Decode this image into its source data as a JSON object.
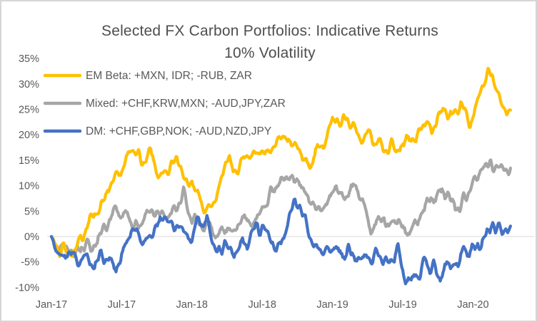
{
  "colors": {
    "background": "#FFFFFF",
    "frame_border": "#D6D6D6",
    "gridline": "#D9D9D9",
    "title_text": "#4E4E4E",
    "label_text": "#595959"
  },
  "chart_data": {
    "type": "line",
    "title": "Selected FX Carbon Portfolios: Indicative Returns 10% Volatility",
    "title_line1": "Selected FX Carbon Portfolios: Indicative Returns",
    "title_line2": "10% Volatility",
    "xlabel": "",
    "ylabel": "",
    "x_unit": "months since Jan-2017",
    "y_unit": "percent return",
    "ylim": [
      -10,
      35
    ],
    "y_tick_step": 5,
    "y_tick_labels": [
      "35%",
      "30%",
      "25%",
      "20%",
      "15%",
      "10%",
      "5%",
      "0%",
      "-5%",
      "-10%"
    ],
    "x_tick_labels": [
      "Jan-17",
      "Jul-17",
      "Jan-18",
      "Jul-18",
      "Jan-19",
      "Jul-19",
      "Jan-20"
    ],
    "x_tick_months": [
      0,
      6,
      12,
      18,
      24,
      30,
      36
    ],
    "gridlines": "horizontal line at 0% only",
    "legend_position": "top-left overlay",
    "series": [
      {
        "name": "EM Beta",
        "label": "EM Beta: +MXN, IDR; -RUB, ZAR",
        "color": "#FFC000",
        "points": [
          [
            0,
            0
          ],
          [
            0.3,
            -1.5
          ],
          [
            0.6,
            -3.3
          ],
          [
            1,
            -1.6
          ],
          [
            1.5,
            -3.3
          ],
          [
            2,
            -2.3
          ],
          [
            2.4,
            -1.2
          ],
          [
            2.8,
            1
          ],
          [
            3.2,
            3.5
          ],
          [
            3.6,
            4.2
          ],
          [
            4,
            5
          ],
          [
            4.4,
            6.5
          ],
          [
            4.8,
            9
          ],
          [
            5.2,
            10.8
          ],
          [
            5.6,
            12.8
          ],
          [
            6,
            12.6
          ],
          [
            6.4,
            15
          ],
          [
            6.8,
            16.8
          ],
          [
            7,
            17.3
          ],
          [
            7.3,
            16.4
          ],
          [
            7.6,
            15
          ],
          [
            7.9,
            14.3
          ],
          [
            8.2,
            16.3
          ],
          [
            8.4,
            17.1
          ],
          [
            8.7,
            14.8
          ],
          [
            9,
            13
          ],
          [
            9.3,
            11.8
          ],
          [
            9.6,
            12.4
          ],
          [
            10,
            13.5
          ],
          [
            10.4,
            14.2
          ],
          [
            10.7,
            15.8
          ],
          [
            11,
            13.5
          ],
          [
            11.4,
            10.5
          ],
          [
            11.7,
            9.5
          ],
          [
            12,
            10.8
          ],
          [
            12.4,
            9.5
          ],
          [
            13,
            5.2
          ],
          [
            13.4,
            6.5
          ],
          [
            13.8,
            5.8
          ],
          [
            14.2,
            9
          ],
          [
            14.6,
            11.5
          ],
          [
            15,
            14.5
          ],
          [
            15.2,
            16.3
          ],
          [
            15.5,
            12.8
          ],
          [
            15.8,
            12.2
          ],
          [
            16.1,
            14.2
          ],
          [
            16.4,
            16.2
          ],
          [
            16.7,
            14.8
          ],
          [
            17,
            15.8
          ],
          [
            17.3,
            17.5
          ],
          [
            17.6,
            16.2
          ],
          [
            18,
            16.5
          ],
          [
            18.3,
            17.8
          ],
          [
            18.6,
            16.2
          ],
          [
            19,
            17.2
          ],
          [
            19.5,
            20.2
          ],
          [
            19.8,
            19
          ],
          [
            20.1,
            19.6
          ],
          [
            20.5,
            18.8
          ],
          [
            21,
            17.4
          ],
          [
            21.4,
            16.3
          ],
          [
            21.8,
            14
          ],
          [
            22.1,
            12.9
          ],
          [
            22.4,
            16.2
          ],
          [
            22.7,
            17.4
          ],
          [
            23,
            16.1
          ],
          [
            23.3,
            18.6
          ],
          [
            23.7,
            21.4
          ],
          [
            24,
            22.4
          ],
          [
            24.4,
            23.2
          ],
          [
            24.8,
            22.4
          ],
          [
            25.2,
            23.4
          ],
          [
            25.6,
            22.2
          ],
          [
            26,
            21.6
          ],
          [
            26.5,
            18.8
          ],
          [
            27,
            20.4
          ],
          [
            27.5,
            19
          ],
          [
            28,
            18.6
          ],
          [
            28.5,
            17.2
          ],
          [
            29,
            17.9
          ],
          [
            29.5,
            17.3
          ],
          [
            30,
            17.6
          ],
          [
            30.5,
            20.4
          ],
          [
            31,
            18.6
          ],
          [
            31.5,
            21
          ],
          [
            32,
            22.4
          ],
          [
            32.5,
            21.2
          ],
          [
            33,
            23.4
          ],
          [
            33.5,
            25.2
          ],
          [
            34,
            23.4
          ],
          [
            34.5,
            24.6
          ],
          [
            35,
            25.9
          ],
          [
            35.4,
            24
          ],
          [
            35.8,
            22.2
          ],
          [
            36.2,
            25
          ],
          [
            36.6,
            29
          ],
          [
            37,
            31.2
          ],
          [
            37.3,
            32.6
          ],
          [
            37.7,
            31.4
          ],
          [
            38,
            29
          ],
          [
            38.4,
            25.6
          ],
          [
            38.7,
            25
          ],
          [
            39,
            25.6
          ],
          [
            39.2,
            25.4
          ]
        ]
      },
      {
        "name": "Mixed",
        "label": "Mixed: +CHF,KRW,MXN; -AUD,JPY,ZAR",
        "color": "#A6A6A6",
        "points": [
          [
            0,
            0
          ],
          [
            0.4,
            -2.3
          ],
          [
            0.8,
            -1.6
          ],
          [
            1.2,
            -2.6
          ],
          [
            1.6,
            -2
          ],
          [
            2,
            -4
          ],
          [
            2.5,
            -2.2
          ],
          [
            3,
            -1.6
          ],
          [
            3.5,
            -2.6
          ],
          [
            4,
            -0.6
          ],
          [
            4.5,
            1.4
          ],
          [
            5,
            2.8
          ],
          [
            5.5,
            5.4
          ],
          [
            6,
            3.6
          ],
          [
            6.5,
            4.2
          ],
          [
            7,
            2.6
          ],
          [
            7.4,
            1.7
          ],
          [
            8,
            4.4
          ],
          [
            8.5,
            5
          ],
          [
            9,
            4.8
          ],
          [
            9.5,
            5
          ],
          [
            10,
            3.8
          ],
          [
            10.5,
            4.8
          ],
          [
            11,
            7
          ],
          [
            11.3,
            8.4
          ],
          [
            11.7,
            5
          ],
          [
            12,
            2.6
          ],
          [
            12.4,
            3.2
          ],
          [
            13,
            1.8
          ],
          [
            13.5,
            2.3
          ],
          [
            14,
            -0.2
          ],
          [
            14.5,
            1.2
          ],
          [
            15,
            1.6
          ],
          [
            15.5,
            0.8
          ],
          [
            16,
            2
          ],
          [
            16.5,
            3.4
          ],
          [
            17,
            2.4
          ],
          [
            17.5,
            3.2
          ],
          [
            18,
            5.6
          ],
          [
            18.4,
            6.8
          ],
          [
            18.8,
            8.8
          ],
          [
            19.2,
            9.6
          ],
          [
            19.6,
            11
          ],
          [
            20,
            11.6
          ],
          [
            20.4,
            12.2
          ],
          [
            20.7,
            11
          ],
          [
            21,
            12
          ],
          [
            21.4,
            9.8
          ],
          [
            21.8,
            8
          ],
          [
            22.2,
            6.6
          ],
          [
            22.6,
            5.4
          ],
          [
            23,
            5
          ],
          [
            23.5,
            6.6
          ],
          [
            24,
            9
          ],
          [
            24.3,
            10
          ],
          [
            24.7,
            8.4
          ],
          [
            25,
            7.6
          ],
          [
            25.5,
            9.6
          ],
          [
            26,
            9.4
          ],
          [
            26.5,
            7.4
          ],
          [
            27,
            3.8
          ],
          [
            27.3,
            0.9
          ],
          [
            27.7,
            2.6
          ],
          [
            28,
            2.4
          ],
          [
            28.4,
            3.8
          ],
          [
            28.8,
            2.2
          ],
          [
            29.2,
            3.4
          ],
          [
            29.6,
            2.6
          ],
          [
            30,
            1.9
          ],
          [
            30.4,
            0.9
          ],
          [
            30.8,
            1.4
          ],
          [
            31.2,
            2.4
          ],
          [
            31.6,
            4.7
          ],
          [
            32,
            6
          ],
          [
            32.4,
            8
          ],
          [
            32.8,
            7
          ],
          [
            33.2,
            9
          ],
          [
            33.5,
            9.2
          ],
          [
            34,
            7.4
          ],
          [
            34.8,
            5.2
          ],
          [
            35.4,
            8
          ],
          [
            36,
            10.4
          ],
          [
            36.5,
            12
          ],
          [
            36.9,
            14
          ],
          [
            37.2,
            13.4
          ],
          [
            37.5,
            14.6
          ],
          [
            38.1,
            13.2
          ],
          [
            38.5,
            13.8
          ],
          [
            39,
            12.7
          ],
          [
            39.2,
            12.5
          ]
        ]
      },
      {
        "name": "DM",
        "label": "DM: +CHF,GBP,NOK; -AUD,NZD,JPY",
        "color": "#4472C4",
        "points": [
          [
            0,
            0
          ],
          [
            0.3,
            -2
          ],
          [
            0.7,
            -3.2
          ],
          [
            1,
            -4.6
          ],
          [
            1.5,
            -2.8
          ],
          [
            2,
            -4
          ],
          [
            2.4,
            -5.3
          ],
          [
            2.8,
            -3.8
          ],
          [
            3.2,
            -4.6
          ],
          [
            3.7,
            -6.6
          ],
          [
            4,
            -4.4
          ],
          [
            4.2,
            -3.2
          ],
          [
            4.5,
            -5.2
          ],
          [
            5,
            -4.6
          ],
          [
            5.5,
            -6.8
          ],
          [
            6,
            -3.6
          ],
          [
            6.5,
            -0.6
          ],
          [
            7,
            1.2
          ],
          [
            7.5,
            0.4
          ],
          [
            8,
            -1.2
          ],
          [
            8.5,
            0.6
          ],
          [
            9,
            2.1
          ],
          [
            9.5,
            3.6
          ],
          [
            10,
            3
          ],
          [
            10.5,
            1.4
          ],
          [
            11,
            2.4
          ],
          [
            11.5,
            0.4
          ],
          [
            12,
            -1.2
          ],
          [
            12.3,
            2
          ],
          [
            12.6,
            4.2
          ],
          [
            13,
            0.8
          ],
          [
            13.3,
            3.6
          ],
          [
            13.7,
            -1.2
          ],
          [
            14,
            -2.6
          ],
          [
            14.4,
            -3.4
          ],
          [
            14.8,
            -1.2
          ],
          [
            15.2,
            -2.2
          ],
          [
            15.6,
            -4.2
          ],
          [
            16,
            -2.6
          ],
          [
            16.3,
            -0.6
          ],
          [
            16.7,
            -2.2
          ],
          [
            17,
            0.4
          ],
          [
            17.4,
            2.2
          ],
          [
            17.7,
            0.8
          ],
          [
            18,
            2.4
          ],
          [
            18.4,
            1
          ],
          [
            18.8,
            -0.6
          ],
          [
            19.2,
            -2.6
          ],
          [
            19.6,
            -1.2
          ],
          [
            20,
            1.4
          ],
          [
            20.4,
            4
          ],
          [
            20.7,
            6.2
          ],
          [
            21,
            6.6
          ],
          [
            21.4,
            5
          ],
          [
            21.8,
            2
          ],
          [
            22.2,
            -0.5
          ],
          [
            22.6,
            -2
          ],
          [
            23,
            -3.2
          ],
          [
            23.4,
            -2
          ],
          [
            23.8,
            -2.8
          ],
          [
            24.2,
            -1.6
          ],
          [
            24.6,
            -3
          ],
          [
            25,
            -3.8
          ],
          [
            25.4,
            -2.4
          ],
          [
            25.8,
            -4.4
          ],
          [
            26.2,
            -3
          ],
          [
            26.6,
            -4.2
          ],
          [
            27,
            -3.4
          ],
          [
            27.4,
            -4.6
          ],
          [
            27.8,
            -3.6
          ],
          [
            28,
            -4.2
          ],
          [
            28.3,
            -5.4
          ],
          [
            28.6,
            -4.4
          ],
          [
            29,
            -5.2
          ],
          [
            29.3,
            -4
          ],
          [
            29.6,
            -2.3
          ],
          [
            29.9,
            -6
          ],
          [
            30.2,
            -8.6
          ],
          [
            30.5,
            -8
          ],
          [
            30.8,
            -9.2
          ],
          [
            31.1,
            -7
          ],
          [
            31.4,
            -8.3
          ],
          [
            31.7,
            -6
          ],
          [
            32,
            -4.6
          ],
          [
            32.3,
            -6.6
          ],
          [
            32.6,
            -5
          ],
          [
            32.9,
            -7.2
          ],
          [
            33.2,
            -8.6
          ],
          [
            33.5,
            -6.8
          ],
          [
            33.8,
            -5.4
          ],
          [
            34.1,
            -6.4
          ],
          [
            34.4,
            -5
          ],
          [
            34.7,
            -5.8
          ],
          [
            35,
            -4.4
          ],
          [
            35.2,
            -2.5
          ],
          [
            35.5,
            -4
          ],
          [
            35.8,
            -3
          ],
          [
            36.1,
            -2.2
          ],
          [
            36.4,
            -1.4
          ],
          [
            36.7,
            -1.8
          ],
          [
            37,
            -0.4
          ],
          [
            37.3,
            1
          ],
          [
            37.6,
            2.2
          ],
          [
            37.9,
            1.2
          ],
          [
            38.2,
            2.4
          ],
          [
            38.5,
            1
          ],
          [
            38.8,
            1.6
          ],
          [
            39,
            0.4
          ],
          [
            39.2,
            0.7
          ]
        ]
      }
    ]
  }
}
